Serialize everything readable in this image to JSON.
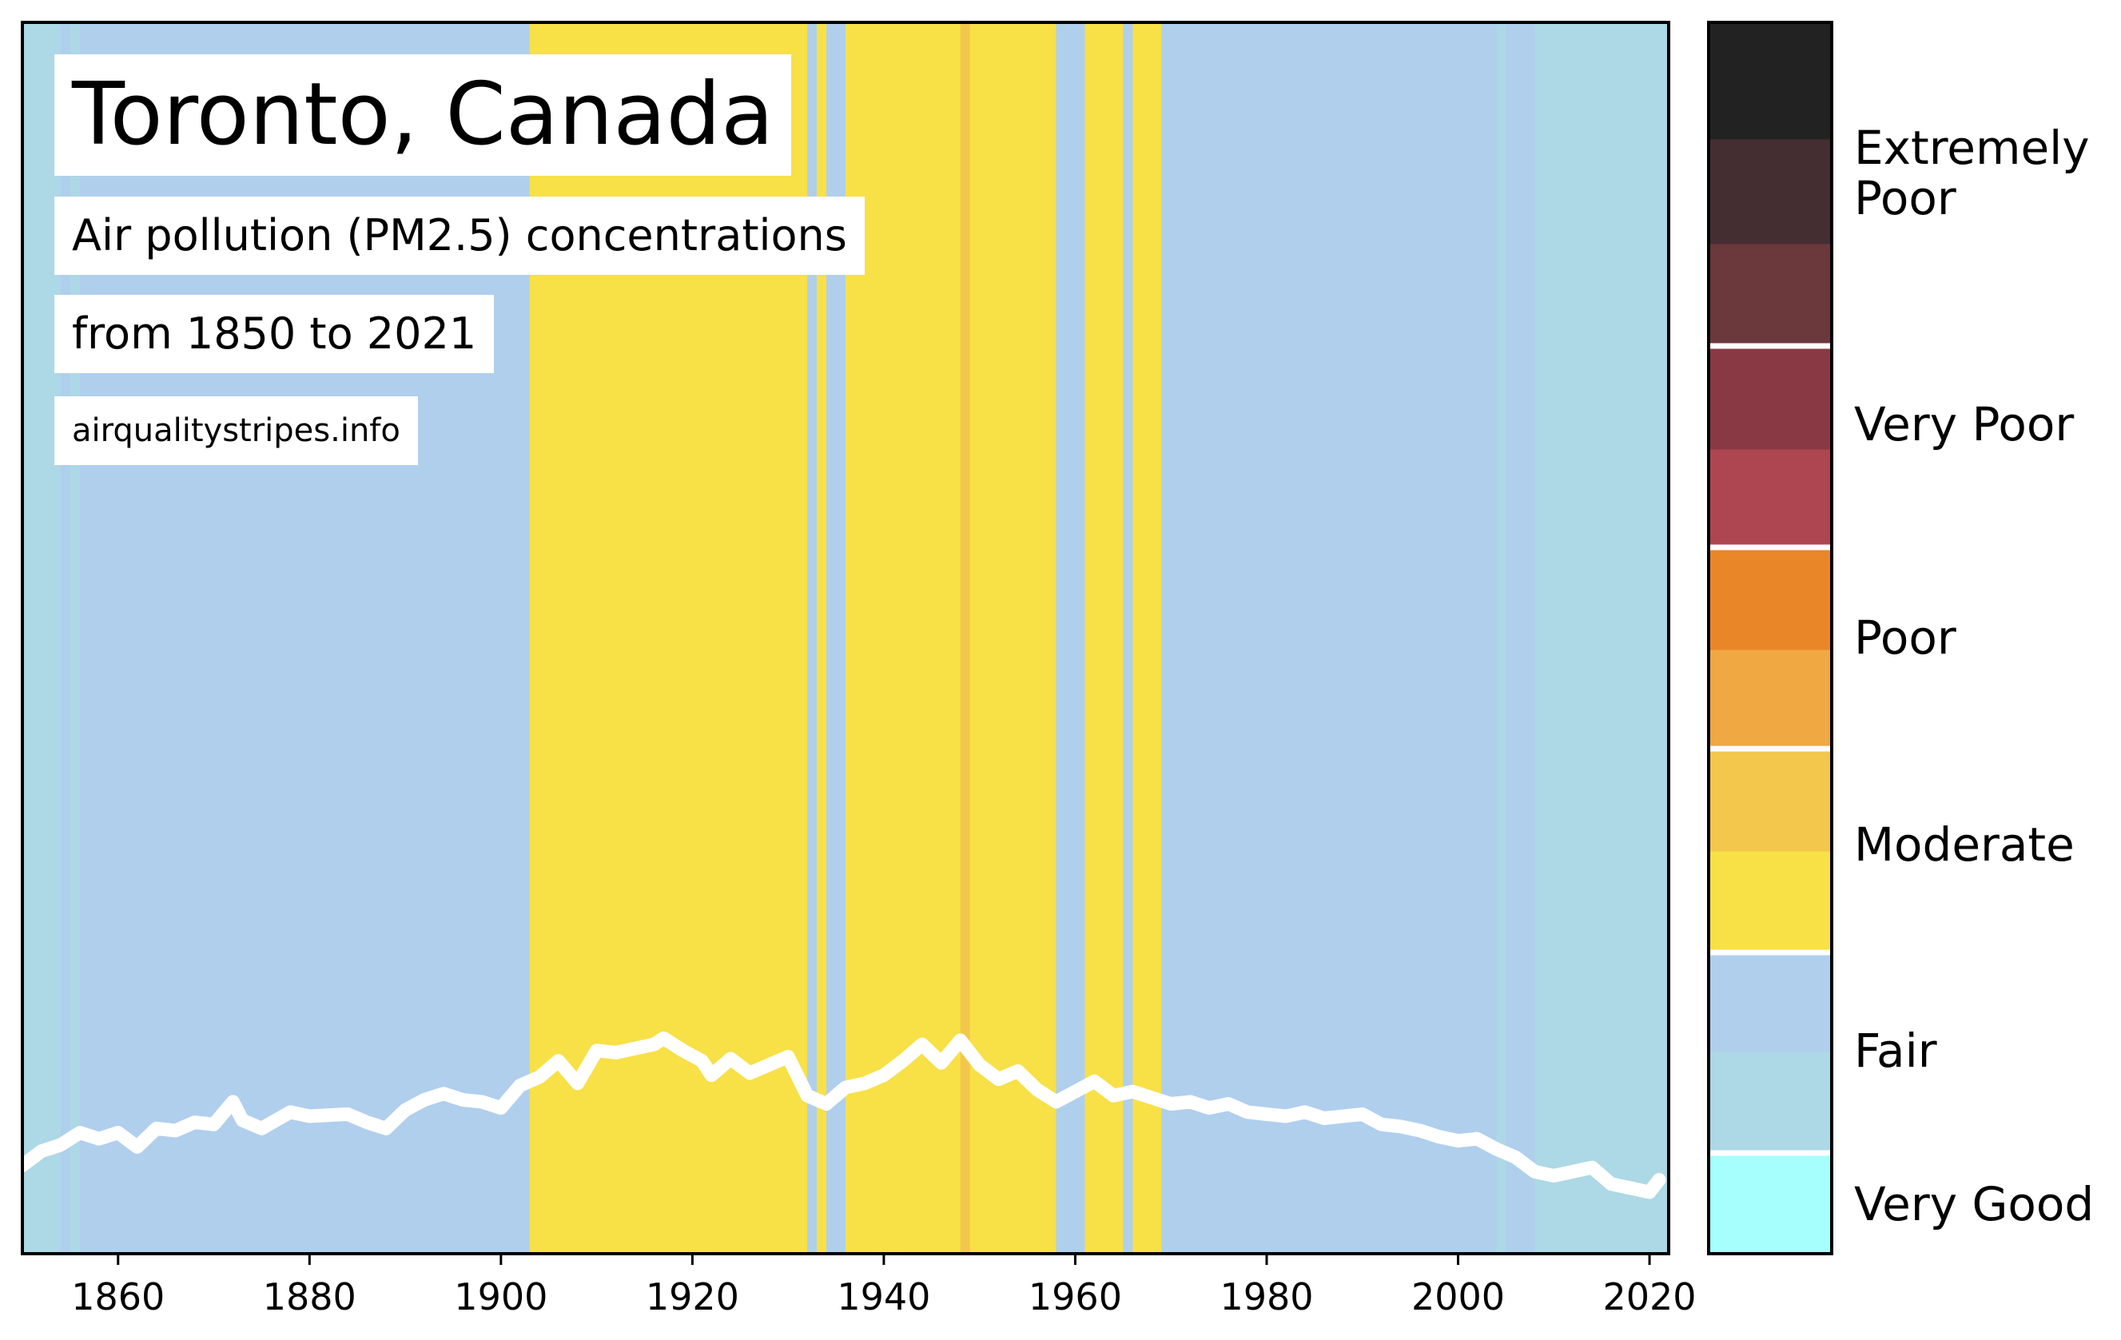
{
  "title": "Toronto, Canada",
  "subtitle_line1": "Air pollution (PM2.5) concentrations",
  "subtitle_line2": "from 1850 to 2021",
  "source": "airqualitystripes.info",
  "colors": {
    "very_good": "#a6fffc",
    "fair_low": "#add8e6",
    "fair_high": "#b0cfed",
    "moderate_low": "#f8e047",
    "moderate_high": "#f2c74b",
    "poor_low": "#f0a842",
    "poor_high": "#e98728",
    "very_poor_low": "#ae4651",
    "very_poor_high": "#893943",
    "extremely_poor_1": "#6b383c",
    "extremely_poor_2": "#442e31",
    "extremely_poor_3": "#222222",
    "line": "#ffffff"
  },
  "legend": {
    "labels": [
      "Very Good",
      "Fair",
      "Moderate",
      "Poor",
      "Very Poor",
      "Extremely Poor"
    ]
  },
  "chart_data": {
    "type": "line",
    "title": "Toronto, Canada",
    "subtitle": "Air pollution (PM2.5) concentrations from 1850 to 2021",
    "xlabel": "",
    "ylabel": "",
    "xlim": [
      1850,
      2022
    ],
    "ylim": [
      0,
      60
    ],
    "x_ticks": [
      1860,
      1880,
      1900,
      1920,
      1940,
      1960,
      1980,
      2000,
      2020
    ],
    "grid": false,
    "stripe_categories": [
      {
        "from": 1850,
        "to": 1854,
        "band": "fair_low"
      },
      {
        "from": 1854,
        "to": 1855,
        "band": "fair_high"
      },
      {
        "from": 1855,
        "to": 1856,
        "band": "fair_low"
      },
      {
        "from": 1856,
        "to": 1903,
        "band": "fair_high"
      },
      {
        "from": 1903,
        "to": 1932,
        "band": "moderate_low"
      },
      {
        "from": 1932,
        "to": 1933,
        "band": "fair_high"
      },
      {
        "from": 1933,
        "to": 1934,
        "band": "moderate_low"
      },
      {
        "from": 1934,
        "to": 1936,
        "band": "fair_high"
      },
      {
        "from": 1936,
        "to": 1948,
        "band": "moderate_low"
      },
      {
        "from": 1948,
        "to": 1949,
        "band": "moderate_high"
      },
      {
        "from": 1949,
        "to": 1958,
        "band": "moderate_low"
      },
      {
        "from": 1958,
        "to": 1961,
        "band": "fair_high"
      },
      {
        "from": 1961,
        "to": 1965,
        "band": "moderate_low"
      },
      {
        "from": 1965,
        "to": 1966,
        "band": "fair_high"
      },
      {
        "from": 1966,
        "to": 1969,
        "band": "moderate_low"
      },
      {
        "from": 1969,
        "to": 2004,
        "band": "fair_high"
      },
      {
        "from": 2004,
        "to": 2005,
        "band": "fair_low"
      },
      {
        "from": 2005,
        "to": 2008,
        "band": "fair_high"
      },
      {
        "from": 2008,
        "to": 2022,
        "band": "fair_low"
      }
    ],
    "series": [
      {
        "x": [
          1850,
          1852,
          1854,
          1856,
          1858,
          1860,
          1862,
          1864,
          1866,
          1868,
          1870,
          1872,
          1873,
          1875,
          1878,
          1880,
          1884,
          1886,
          1888,
          1890,
          1892,
          1894,
          1896,
          1898,
          1900,
          1902,
          1904,
          1906,
          1908,
          1910,
          1912,
          1914,
          1916,
          1917,
          1919,
          1921,
          1922,
          1924,
          1926,
          1928,
          1930,
          1932,
          1934,
          1936,
          1938,
          1940,
          1942,
          1944,
          1946,
          1948,
          1950,
          1952,
          1954,
          1956,
          1958,
          1960,
          1962,
          1964,
          1966,
          1968,
          1970,
          1972,
          1974,
          1976,
          1978,
          1980,
          1982,
          1984,
          1986,
          1988,
          1990,
          1992,
          1994,
          1996,
          1998,
          2000,
          2002,
          2004,
          2006,
          2008,
          2010,
          2012,
          2014,
          2016,
          2018,
          2020,
          2021
        ],
        "values": [
          4.3,
          5.0,
          5.3,
          5.9,
          5.6,
          5.9,
          5.2,
          6.1,
          6.0,
          6.4,
          6.3,
          7.4,
          6.5,
          6.1,
          6.9,
          6.7,
          6.8,
          6.4,
          6.1,
          7.0,
          7.5,
          7.8,
          7.5,
          7.4,
          7.1,
          8.2,
          8.6,
          9.4,
          8.3,
          9.9,
          9.8,
          10.0,
          10.2,
          10.5,
          9.9,
          9.4,
          8.7,
          9.5,
          8.8,
          9.2,
          9.6,
          7.7,
          7.3,
          8.1,
          8.3,
          8.7,
          9.4,
          10.2,
          9.3,
          10.4,
          9.2,
          8.5,
          8.9,
          8.0,
          7.4,
          7.9,
          8.4,
          7.7,
          7.9,
          7.6,
          7.3,
          7.4,
          7.1,
          7.3,
          6.9,
          6.8,
          6.7,
          6.9,
          6.6,
          6.7,
          6.8,
          6.3,
          6.2,
          6.0,
          5.7,
          5.5,
          5.6,
          5.1,
          4.7,
          4.0,
          3.8,
          4.0,
          4.2,
          3.4,
          3.2,
          3.0,
          3.6
        ]
      }
    ],
    "legend": {
      "type": "colorbar",
      "placement": "right",
      "labels": [
        "Very Good",
        "Fair",
        "Moderate",
        "Poor",
        "Very Poor",
        "Extremely Poor"
      ]
    }
  }
}
